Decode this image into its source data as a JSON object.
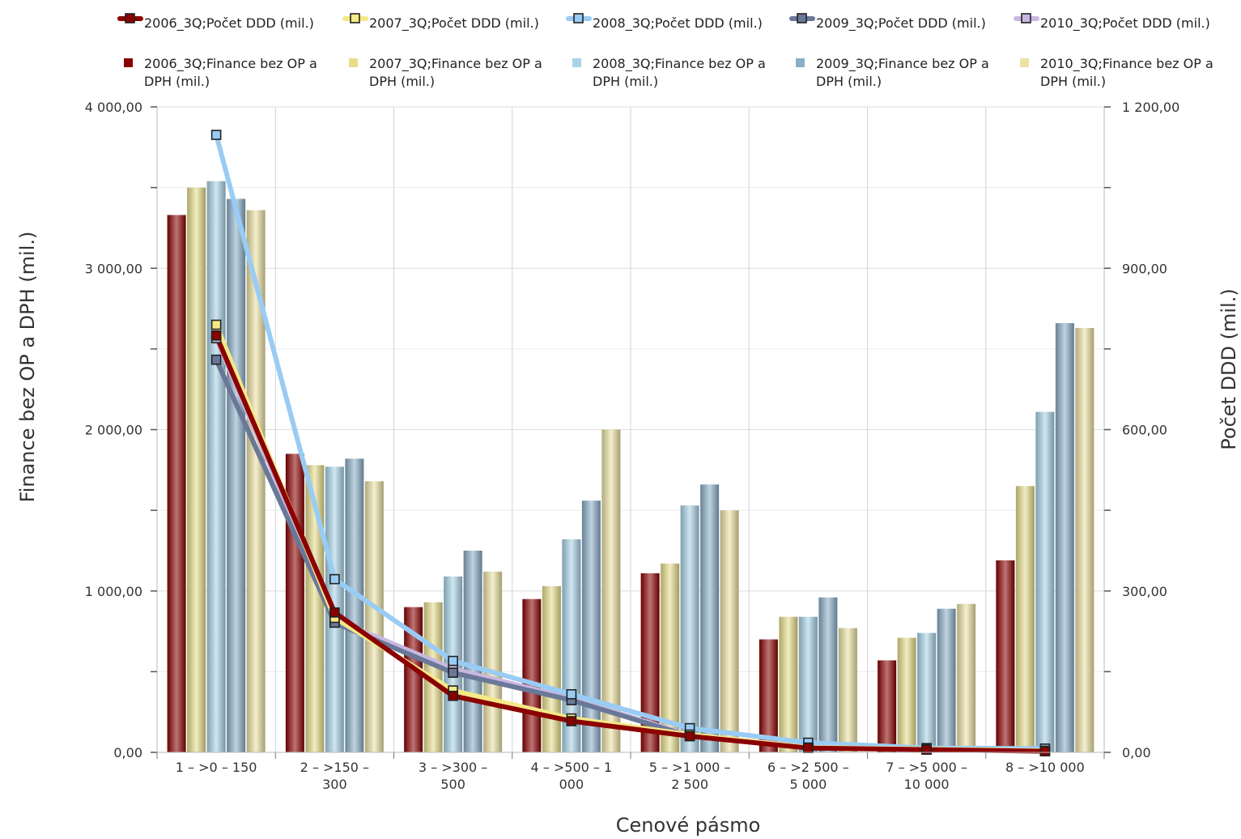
{
  "chart_data": {
    "type": "bar",
    "categories": [
      [
        "1 – >0 – 150"
      ],
      [
        "2 – >150 –",
        "300"
      ],
      [
        "3 – >300 –",
        "500"
      ],
      [
        "4 – >500 – 1",
        "000"
      ],
      [
        "5 – >1 000 –",
        "2 500"
      ],
      [
        "6 – >2 500 –",
        "5 000"
      ],
      [
        "7 – >5 000 –",
        "10 000"
      ],
      [
        "8 – >10 000"
      ]
    ],
    "xlabel": "Cenové pásmo",
    "ylabel_left": "Finance bez OP a DPH (mil.)",
    "ylabel_right": "Počet DDD (mil.)",
    "ylim_left": [
      0,
      4000
    ],
    "ylim_right": [
      0,
      1200
    ],
    "yticks_left": [
      "0,00",
      "1 000,00",
      "2 000,00",
      "3 000,00",
      "4 000,00"
    ],
    "yticks_right": [
      "0,00",
      "300,00",
      "600,00",
      "900,00",
      "1 200,00"
    ],
    "grid": true,
    "legend_position": "top",
    "bar_series": [
      {
        "name": [
          "2006_3Q;Finance bez OP a",
          "DPH (mil.)"
        ],
        "color": "#8b0000",
        "values": [
          3330,
          1850,
          900,
          950,
          1110,
          700,
          570,
          1190
        ]
      },
      {
        "name": [
          "2007_3Q;Finance bez OP a",
          "DPH (mil.)"
        ],
        "color": "#e8de8a",
        "values": [
          3500,
          1780,
          930,
          1030,
          1170,
          840,
          710,
          1650
        ]
      },
      {
        "name": [
          "2008_3Q;Finance bez OP a",
          "DPH (mil.)"
        ],
        "color": "#a8d4e8",
        "values": [
          3540,
          1770,
          1090,
          1320,
          1530,
          840,
          740,
          2110
        ]
      },
      {
        "name": [
          "2009_3Q;Finance bez OP a",
          "DPH (mil.)"
        ],
        "color": "#8aafc8",
        "values": [
          3430,
          1820,
          1250,
          1560,
          1660,
          960,
          890,
          2660
        ]
      },
      {
        "name": [
          "2010_3Q;Finance bez OP a",
          "DPH (mil.)"
        ],
        "color": "#ece2a4",
        "values": [
          3360,
          1680,
          1120,
          2000,
          1500,
          770,
          920,
          2630
        ]
      }
    ],
    "line_series": [
      {
        "name": "2006_3Q;Počet DDD (mil.)",
        "color": "#8b0000",
        "values": [
          775,
          260,
          105,
          58,
          30,
          8,
          5,
          2
        ]
      },
      {
        "name": "2007_3Q;Počet DDD (mil.)",
        "color": "#f5e887",
        "values": [
          795,
          250,
          115,
          63,
          33,
          9,
          6,
          3
        ]
      },
      {
        "name": "2008_3Q;Počet DDD (mil.)",
        "color": "#99ccf5",
        "values": [
          1148,
          322,
          170,
          108,
          45,
          18,
          8,
          7
        ]
      },
      {
        "name": "2009_3Q;Počet DDD (mil.)",
        "color": "#6a7898",
        "values": [
          730,
          241,
          148,
          97,
          30,
          10,
          5,
          3
        ]
      },
      {
        "name": "2010_3Q;Počet DDD (mil.)",
        "color": "#c8b8e0",
        "values": [
          770,
          247,
          155,
          100,
          32,
          10,
          5,
          3
        ]
      }
    ]
  }
}
